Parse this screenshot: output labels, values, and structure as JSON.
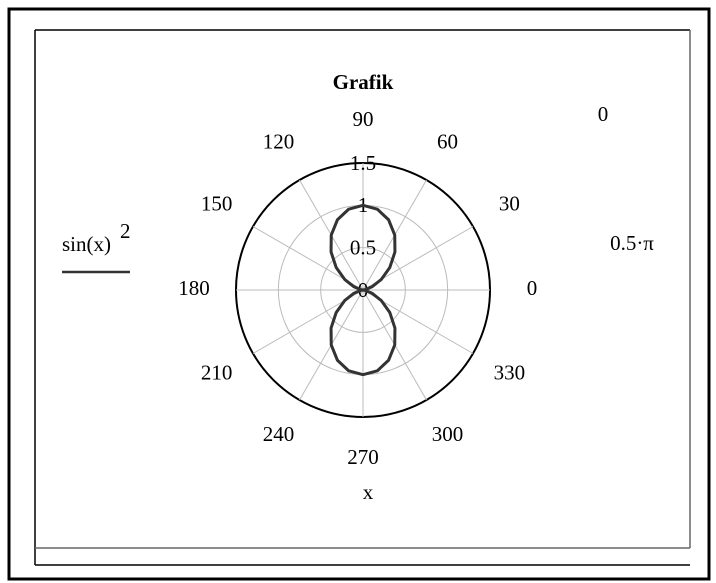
{
  "chart_data": {
    "type": "polar",
    "title": "Grafik",
    "x_label": "x",
    "legend": {
      "text": "sin(x)",
      "superscript": "2"
    },
    "annotations": [
      "0",
      "0.5·π"
    ],
    "x": [
      0,
      10,
      20,
      30,
      40,
      50,
      60,
      70,
      80,
      90,
      100,
      110,
      120,
      130,
      140,
      150,
      160,
      170,
      180,
      190,
      200,
      210,
      220,
      230,
      240,
      250,
      260,
      270,
      280,
      290,
      300,
      310,
      320,
      330,
      340,
      350,
      360
    ],
    "series": [
      {
        "name": "sin(x)^2",
        "color": "#333333",
        "values": [
          0,
          0.0302,
          0.117,
          0.25,
          0.4132,
          0.5868,
          0.75,
          0.883,
          0.9698,
          1,
          0.9698,
          0.883,
          0.75,
          0.5868,
          0.4132,
          0.25,
          0.117,
          0.0302,
          0,
          0.0302,
          0.117,
          0.25,
          0.4132,
          0.5868,
          0.75,
          0.883,
          0.9698,
          1,
          0.9698,
          0.883,
          0.75,
          0.5868,
          0.4132,
          0.25,
          0.117,
          0.0302,
          0
        ]
      }
    ],
    "xticks": [
      0,
      30,
      60,
      90,
      120,
      150,
      180,
      210,
      240,
      270,
      300,
      330
    ],
    "rlim": [
      0,
      1.5
    ],
    "rticks": [
      0,
      0.5,
      1,
      1.5
    ],
    "grid": true
  }
}
